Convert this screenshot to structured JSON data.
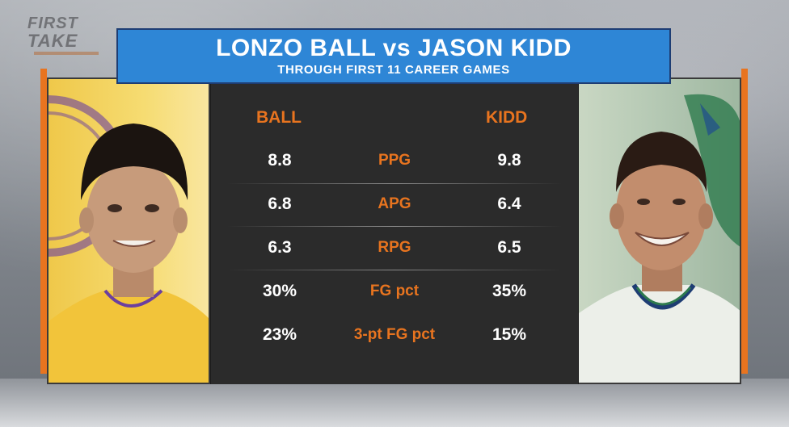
{
  "watermark": {
    "line1": "FIRST",
    "line2": "TAKE"
  },
  "title": {
    "main": "LONZO BALL vs JASON KIDD",
    "sub": "THROUGH FIRST 11 CAREER GAMES"
  },
  "headers": {
    "left": "BALL",
    "right": "KIDD"
  },
  "stats": [
    {
      "label": "PPG",
      "ball": "8.8",
      "kidd": "9.8"
    },
    {
      "label": "APG",
      "ball": "6.8",
      "kidd": "6.4"
    },
    {
      "label": "RPG",
      "ball": "6.3",
      "kidd": "6.5"
    },
    {
      "label": "FG pct",
      "ball": "30%",
      "kidd": "35%"
    },
    {
      "label": "3-pt FG pct",
      "ball": "23%",
      "kidd": "15%"
    }
  ],
  "colors": {
    "accent_orange": "#e8741f",
    "title_blue": "#2e86d6",
    "panel_dark": "#2b2b2b"
  },
  "icons": {
    "left_photo": "player-photo-ball",
    "right_photo": "player-photo-kidd"
  }
}
